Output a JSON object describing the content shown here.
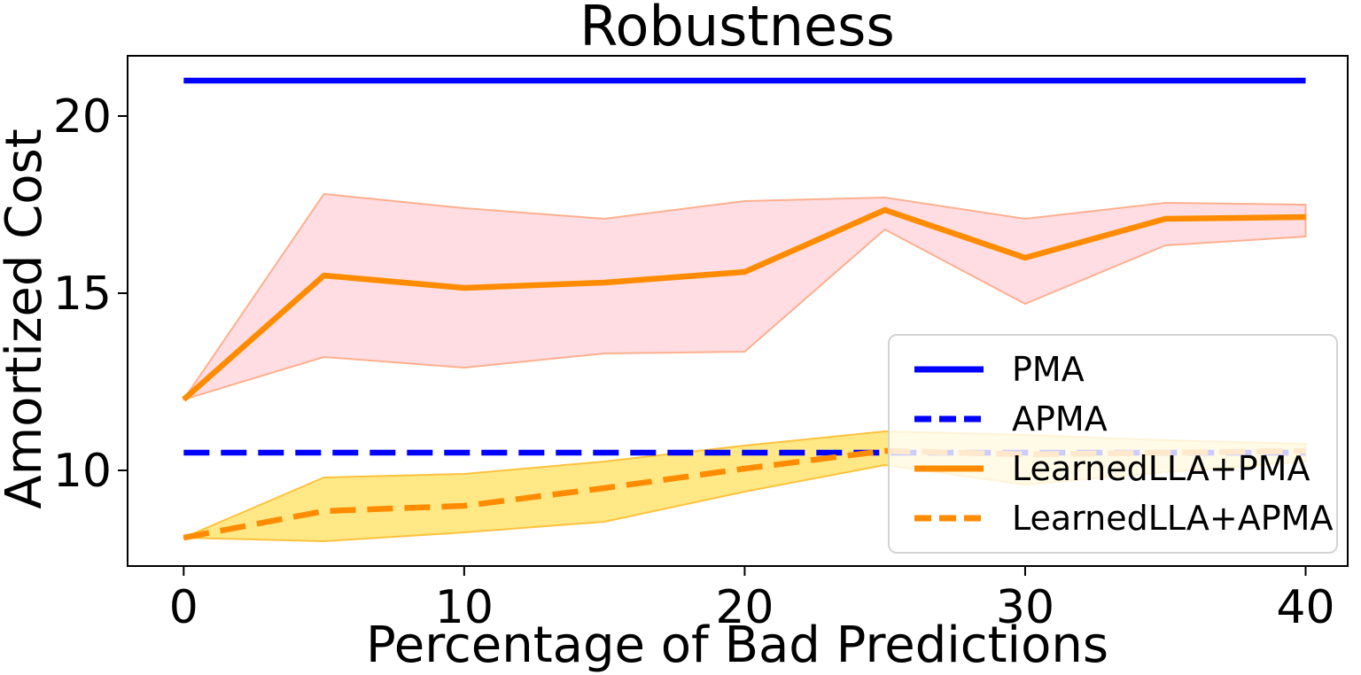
{
  "chart_data": {
    "type": "line",
    "title": "Robustness",
    "xlabel": "Percentage of Bad Predictions",
    "ylabel": "Amortized Cost",
    "x": [
      0,
      5,
      10,
      15,
      20,
      25,
      30,
      35,
      40
    ],
    "x_ticks": [
      0,
      10,
      20,
      30,
      40
    ],
    "y_ticks": [
      10,
      15,
      20
    ],
    "xlim": [
      -2,
      41.5
    ],
    "ylim": [
      7.3,
      21.7
    ],
    "grid": false,
    "legend_position": "lower right",
    "colors": {
      "blue": "#0000ff",
      "orange": "#ff8c00",
      "pink_band_fill": "#ffdde3",
      "pink_band_edge": "#ffb08f",
      "yellow_band_fill": "#ffe885",
      "yellow_band_edge": "#ffc23e",
      "axis": "#000000",
      "legend_border": "#d4d4d4"
    },
    "series": [
      {
        "name": "PMA",
        "color": "#0000ff",
        "style": "solid",
        "values": [
          21,
          21,
          21,
          21,
          21,
          21,
          21,
          21,
          21
        ]
      },
      {
        "name": "APMA",
        "color": "#0000ff",
        "style": "dashed",
        "values": [
          10.5,
          10.5,
          10.5,
          10.5,
          10.5,
          10.5,
          10.5,
          10.5,
          10.5
        ]
      },
      {
        "name": "LearnedLLA+PMA",
        "color": "#ff8c00",
        "style": "solid",
        "values": [
          12.0,
          15.5,
          15.15,
          15.3,
          15.6,
          17.35,
          16.0,
          17.1,
          17.15
        ],
        "band": {
          "lower": [
            12.0,
            13.2,
            12.9,
            13.3,
            13.35,
            16.8,
            14.7,
            16.35,
            16.6
          ],
          "upper": [
            12.0,
            17.8,
            17.4,
            17.1,
            17.6,
            17.7,
            17.1,
            17.55,
            17.5
          ],
          "fill": "#ffdde3",
          "edge": "#ffb08f"
        }
      },
      {
        "name": "LearnedLLA+APMA",
        "color": "#ff8c00",
        "style": "dashed",
        "values": [
          8.1,
          8.85,
          9.0,
          9.5,
          10.05,
          10.55,
          10.45,
          10.5,
          10.55
        ],
        "band": {
          "lower": [
            8.1,
            8.0,
            8.25,
            8.55,
            9.4,
            10.15,
            9.6,
            9.95,
            10.25
          ],
          "upper": [
            8.1,
            9.8,
            9.9,
            10.25,
            10.7,
            11.1,
            11.0,
            10.85,
            10.75
          ],
          "fill": "#ffe885",
          "edge": "#ffc23e"
        }
      }
    ]
  }
}
